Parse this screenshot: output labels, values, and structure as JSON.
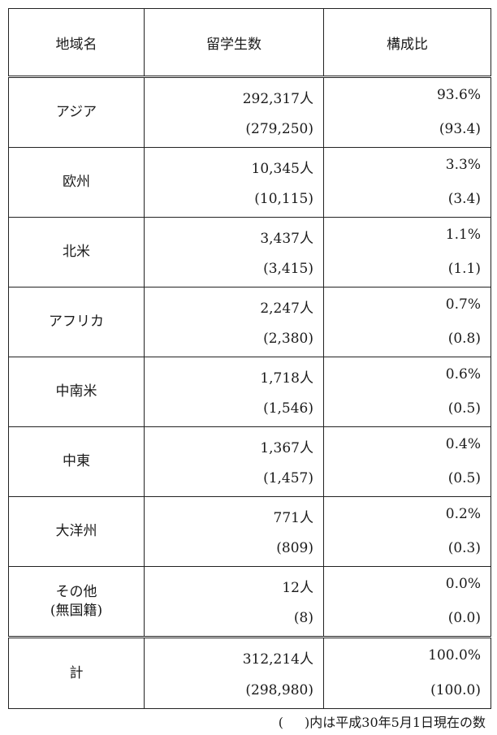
{
  "table": {
    "headers": [
      "地域名",
      "留学生数",
      "構成比"
    ],
    "rows": [
      {
        "region": [
          "アジア"
        ],
        "count": "292,317人",
        "count_prev": "(279,250)",
        "ratio": "93.6%",
        "ratio_prev": "(93.4)"
      },
      {
        "region": [
          "欧州"
        ],
        "count": "10,345人",
        "count_prev": "(10,115)",
        "ratio": "3.3%",
        "ratio_prev": "(3.4)"
      },
      {
        "region": [
          "北米"
        ],
        "count": "3,437人",
        "count_prev": "(3,415)",
        "ratio": "1.1%",
        "ratio_prev": "(1.1)"
      },
      {
        "region": [
          "アフリカ"
        ],
        "count": "2,247人",
        "count_prev": "(2,380)",
        "ratio": "0.7%",
        "ratio_prev": "(0.8)"
      },
      {
        "region": [
          "中南米"
        ],
        "count": "1,718人",
        "count_prev": "(1,546)",
        "ratio": "0.6%",
        "ratio_prev": "(0.5)"
      },
      {
        "region": [
          "中東"
        ],
        "count": "1,367人",
        "count_prev": "(1,457)",
        "ratio": "0.4%",
        "ratio_prev": "(0.5)"
      },
      {
        "region": [
          "大洋州"
        ],
        "count": "771人",
        "count_prev": "(809)",
        "ratio": "0.2%",
        "ratio_prev": "(0.3)"
      },
      {
        "region": [
          "その他",
          "(無国籍)"
        ],
        "count": "12人",
        "count_prev": "(8)",
        "ratio": "0.0%",
        "ratio_prev": "(0.0)"
      }
    ],
    "total": {
      "region": "計",
      "count": "312,214人",
      "count_prev": "(298,980)",
      "ratio": "100.0%",
      "ratio_prev": "(100.0)"
    }
  },
  "note": {
    "paren_left": "(",
    "text": ")内は平成30年5月1日現在の数"
  }
}
